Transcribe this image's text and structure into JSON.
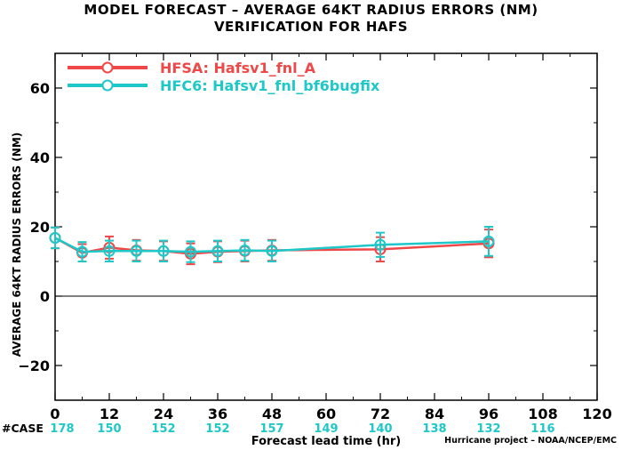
{
  "title_line1": "MODEL FORECAST – AVERAGE 64KT RADIUS ERRORS (NM)",
  "title_line2": "VERIFICATION FOR HAFS",
  "credit": "Hurricane project – NOAA/NCEP/EMC",
  "case_label": "#CASE",
  "colors": {
    "hfsa": "#f04848",
    "hfc6": "#1ec8c8",
    "axis": "#000000"
  },
  "chart_data": {
    "type": "line",
    "title": "MODEL FORECAST – AVERAGE 64KT RADIUS ERRORS (NM)",
    "subtitle": "VERIFICATION FOR HAFS",
    "xlabel": "Forecast lead time (hr)",
    "ylabel": "AVERAGE 64KT RADIUS ERRORS (NM)",
    "xlim": [
      0,
      120
    ],
    "ylim": [
      -30,
      70
    ],
    "xticks": [
      0,
      12,
      24,
      36,
      48,
      60,
      72,
      84,
      96,
      108,
      120
    ],
    "yticks": [
      -20,
      0,
      20,
      40,
      60
    ],
    "legend_position": "top-left",
    "cases": [
      {
        "x": 0,
        "n": 178
      },
      {
        "x": 12,
        "n": 150
      },
      {
        "x": 24,
        "n": 152
      },
      {
        "x": 36,
        "n": 152
      },
      {
        "x": 48,
        "n": 157
      },
      {
        "x": 60,
        "n": 149
      },
      {
        "x": 72,
        "n": 140
      },
      {
        "x": 84,
        "n": 138
      },
      {
        "x": 96,
        "n": 132
      },
      {
        "x": 108,
        "n": 116
      }
    ],
    "series": [
      {
        "name": "HFSA: Hafsv1_fnl_A",
        "color": "#f04848",
        "x": [
          0,
          6,
          12,
          18,
          24,
          30,
          36,
          42,
          48,
          72,
          96
        ],
        "y": [
          16.8,
          12.5,
          14.0,
          13.2,
          13.0,
          12.2,
          12.8,
          13.0,
          13.2,
          13.5,
          15.2
        ],
        "err": [
          3.0,
          2.5,
          3.2,
          3.0,
          2.8,
          3.0,
          3.0,
          3.0,
          3.0,
          3.5,
          4.0
        ]
      },
      {
        "name": "HFC6: Hafsv1_fnl_bf6bugfix",
        "color": "#1ec8c8",
        "x": [
          0,
          6,
          12,
          18,
          24,
          30,
          36,
          42,
          48,
          72,
          96
        ],
        "y": [
          16.8,
          12.8,
          13.0,
          13.0,
          13.0,
          12.8,
          13.0,
          13.2,
          13.0,
          14.8,
          15.8
        ],
        "err": [
          3.0,
          2.8,
          3.0,
          3.0,
          3.0,
          3.0,
          3.0,
          3.0,
          3.0,
          3.5,
          4.2
        ]
      }
    ]
  }
}
